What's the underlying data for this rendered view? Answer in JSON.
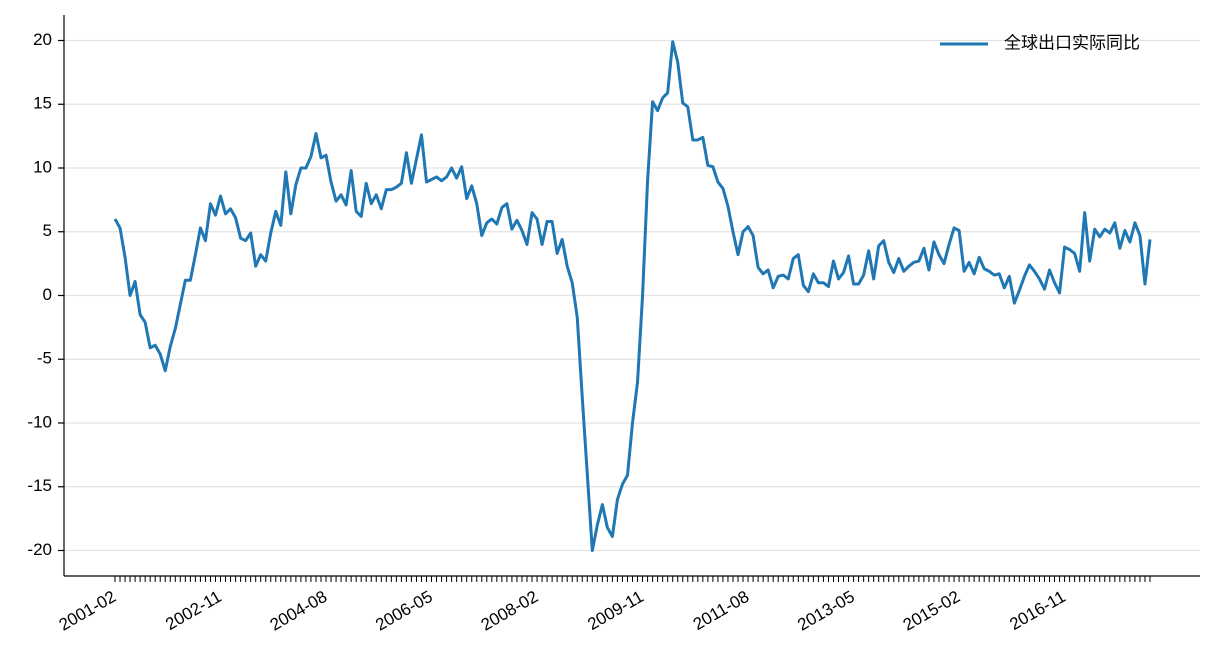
{
  "chart_data": {
    "type": "line",
    "categories": [
      "2001-02",
      null,
      null,
      null,
      null,
      null,
      null,
      null,
      null,
      null,
      null,
      null,
      null,
      null,
      null,
      null,
      null,
      null,
      null,
      null,
      null,
      "2002-11",
      null,
      null,
      null,
      null,
      null,
      null,
      null,
      null,
      null,
      null,
      null,
      null,
      null,
      null,
      null,
      null,
      null,
      null,
      null,
      null,
      "2004-08",
      null,
      null,
      null,
      null,
      null,
      null,
      null,
      null,
      null,
      null,
      null,
      null,
      null,
      null,
      null,
      null,
      null,
      null,
      null,
      null,
      "2006-05",
      null,
      null,
      null,
      null,
      null,
      null,
      null,
      null,
      null,
      null,
      null,
      null,
      null,
      null,
      null,
      null,
      null,
      null,
      null,
      null,
      "2008-02",
      null,
      null,
      null,
      null,
      null,
      null,
      null,
      null,
      null,
      null,
      null,
      null,
      null,
      null,
      null,
      null,
      null,
      null,
      null,
      null,
      "2009-11",
      null,
      null,
      null,
      null,
      null,
      null,
      null,
      null,
      null,
      null,
      null,
      null,
      null,
      null,
      null,
      null,
      null,
      null,
      null,
      null,
      "2011-08",
      null,
      null,
      null,
      null,
      null,
      null,
      null,
      null,
      null,
      null,
      null,
      null,
      null,
      null,
      null,
      null,
      null,
      null,
      null,
      null,
      "2013-05",
      null,
      null,
      null,
      null,
      null,
      null,
      null,
      null,
      null,
      null,
      null,
      null,
      null,
      null,
      null,
      null,
      null,
      null,
      null,
      null,
      "2015-02",
      null,
      null,
      null,
      null,
      null,
      null,
      null,
      null,
      null,
      null,
      null,
      null,
      null,
      null,
      null,
      null,
      null,
      null,
      null,
      null,
      "2016-11",
      null,
      null,
      null,
      null,
      null,
      null,
      null,
      null,
      null,
      null,
      null,
      null,
      null,
      null,
      null,
      null,
      null
    ],
    "series": [
      {
        "name": "全球出口实际同比",
        "color": "#1f77b4",
        "values": [
          6.0,
          5.3,
          3.0,
          0.0,
          1.1,
          -1.5,
          -2.1,
          -4.1,
          -3.9,
          -4.6,
          -5.9,
          -4.0,
          -2.6,
          -0.7,
          1.2,
          1.2,
          3.2,
          5.3,
          4.3,
          7.2,
          6.3,
          7.8,
          6.4,
          6.8,
          6.1,
          4.5,
          4.3,
          4.9,
          2.3,
          3.2,
          2.7,
          4.9,
          6.6,
          5.5,
          9.7,
          6.4,
          8.7,
          10.0,
          10.0,
          10.9,
          12.7,
          10.8,
          11.0,
          8.9,
          7.4,
          7.9,
          7.1,
          9.8,
          6.6,
          6.2,
          8.8,
          7.2,
          7.9,
          6.8,
          8.3,
          8.3,
          8.5,
          8.8,
          11.2,
          8.8,
          10.7,
          12.6,
          8.9,
          9.1,
          9.3,
          9.0,
          9.3,
          10.0,
          9.2,
          10.1,
          7.6,
          8.6,
          7.2,
          4.7,
          5.7,
          6.0,
          5.6,
          6.9,
          7.2,
          5.2,
          5.9,
          5.1,
          4.0,
          6.5,
          6.0,
          4.0,
          5.8,
          5.8,
          3.3,
          4.4,
          2.3,
          1.0,
          -1.7,
          -8.0,
          -14.0,
          -20.0,
          -18.0,
          -16.4,
          -18.2,
          -18.9,
          -16.0,
          -14.8,
          -14.1,
          -10.0,
          -6.8,
          0.0,
          9.0,
          15.2,
          14.5,
          15.5,
          15.9,
          19.9,
          18.3,
          15.1,
          14.8,
          12.2,
          12.2,
          12.4,
          10.2,
          10.1,
          8.9,
          8.4,
          7.0,
          5.0,
          3.2,
          5.0,
          5.4,
          4.7,
          2.2,
          1.7,
          2.0,
          0.6,
          1.5,
          1.6,
          1.3,
          2.9,
          3.2,
          0.8,
          0.3,
          1.7,
          1.0,
          1.0,
          0.7,
          2.7,
          1.3,
          1.8,
          3.1,
          0.9,
          0.9,
          1.6,
          3.5,
          1.3,
          3.9,
          4.3,
          2.6,
          1.8,
          2.9,
          1.9,
          2.3,
          2.6,
          2.7,
          3.7,
          2.0,
          4.2,
          3.2,
          2.5,
          4.0,
          5.3,
          5.1,
          1.9,
          2.6,
          1.7,
          3.0,
          2.1,
          1.9,
          1.6,
          1.7,
          0.6,
          1.5,
          -0.6,
          0.4,
          1.5,
          2.4,
          1.9,
          1.3,
          0.5,
          2.0,
          1.0,
          0.2,
          3.8,
          3.6,
          3.3,
          1.9,
          6.5,
          2.7,
          5.2,
          4.6,
          5.2,
          4.9,
          5.7,
          3.7,
          5.1,
          4.2,
          5.7,
          4.7,
          0.9,
          4.4
        ]
      }
    ],
    "ylim": [
      -22,
      22
    ],
    "yticks": [
      -20,
      -15,
      -10,
      -5,
      0,
      5,
      10,
      15,
      20
    ],
    "grid": true,
    "legend": "upper right"
  }
}
